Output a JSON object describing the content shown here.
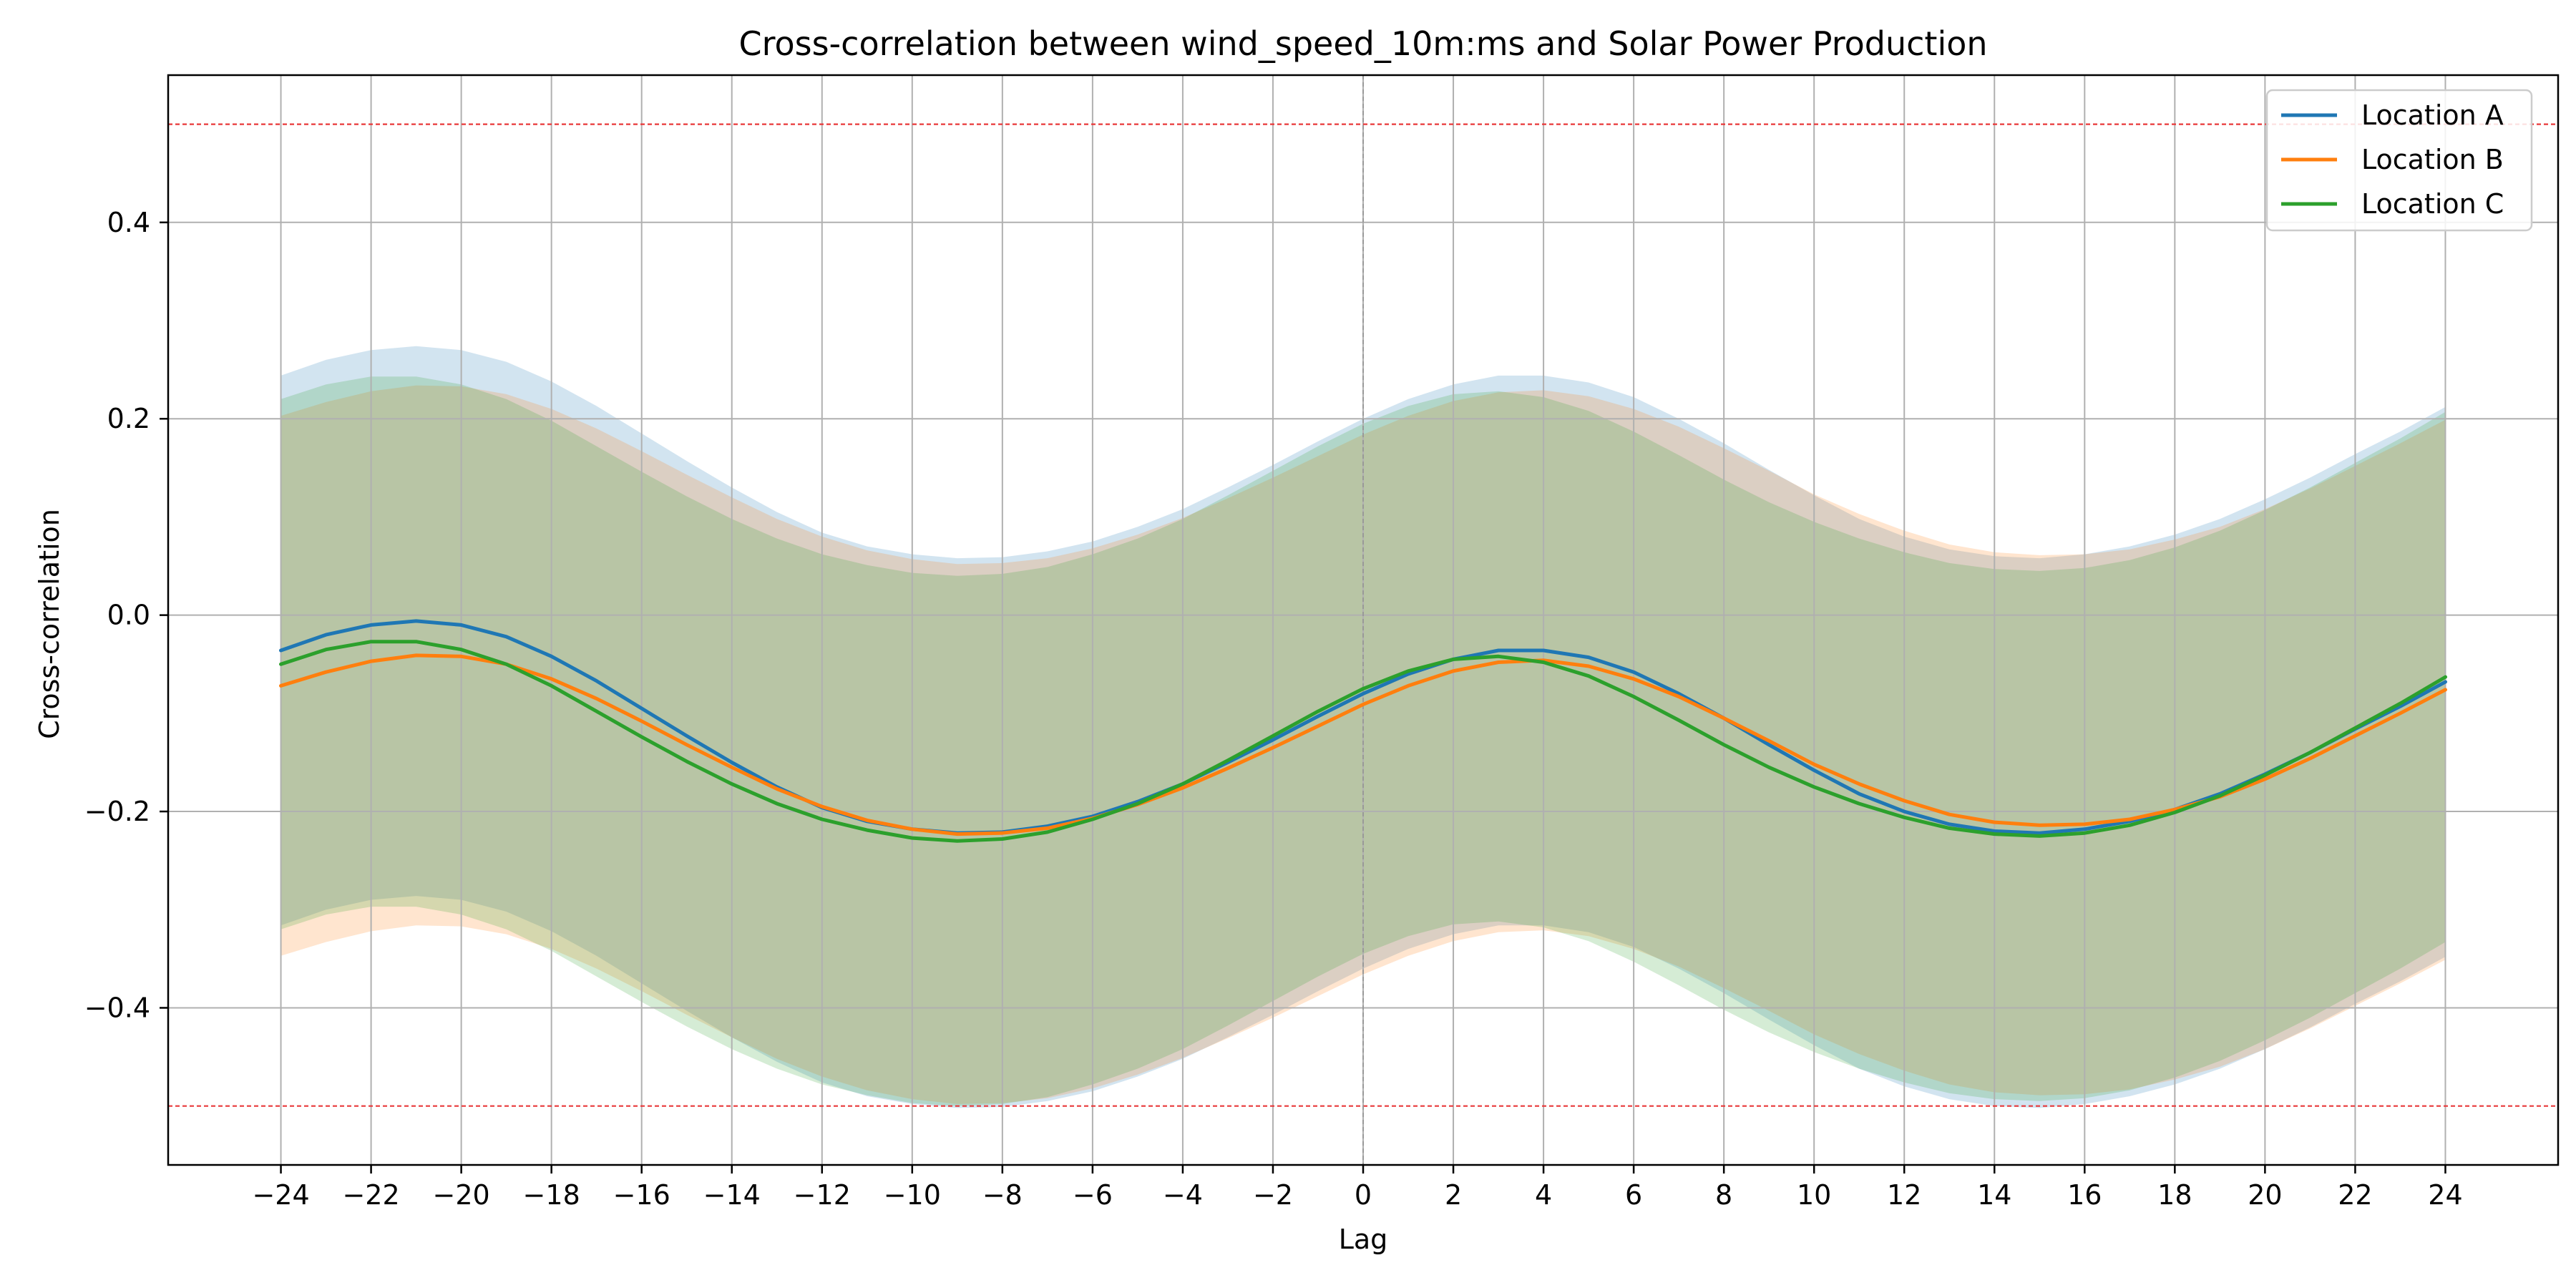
{
  "chart_data": {
    "type": "line",
    "title": "Cross-correlation between wind_speed_10m:ms and Solar Power Production",
    "xlabel": "Lag",
    "ylabel": "Cross-correlation",
    "xlim": [
      -26.5,
      26.5
    ],
    "ylim": [
      -0.56,
      0.55
    ],
    "xticks": [
      -24,
      -22,
      -20,
      -18,
      -16,
      -14,
      -12,
      -10,
      -8,
      -6,
      -4,
      -2,
      0,
      2,
      4,
      6,
      8,
      10,
      12,
      14,
      16,
      18,
      20,
      22,
      24
    ],
    "yticks": [
      -0.4,
      -0.2,
      0.0,
      0.2,
      0.4
    ],
    "ytick_labels": [
      "−0.4",
      "−0.2",
      "0.0",
      "0.2",
      "0.4"
    ],
    "grid": true,
    "legend_position": "top-right",
    "reference_lines": {
      "horizontal": [
        0.5,
        -0.5
      ],
      "horizontal_color": "#e8393a",
      "vertical": [
        0
      ],
      "vertical_color": "#999999"
    },
    "series": [
      {
        "name": "Location A",
        "color": "#1f77b4",
        "band_half_width": 0.28,
        "x": [
          -24,
          -23,
          -22,
          -21,
          -20,
          -19,
          -18,
          -17,
          -16,
          -15,
          -14,
          -13,
          -12,
          -11,
          -10,
          -9,
          -8,
          -7,
          -6,
          -5,
          -4,
          -3,
          -2,
          -1,
          0,
          1,
          2,
          3,
          4,
          5,
          6,
          7,
          8,
          9,
          10,
          11,
          12,
          13,
          14,
          15,
          16,
          17,
          18,
          19,
          20,
          21,
          22,
          23,
          24
        ],
        "y": [
          -0.036,
          -0.02,
          -0.01,
          -0.006,
          -0.01,
          -0.022,
          -0.042,
          -0.067,
          -0.095,
          -0.123,
          -0.15,
          -0.175,
          -0.196,
          -0.21,
          -0.218,
          -0.222,
          -0.221,
          -0.215,
          -0.205,
          -0.19,
          -0.172,
          -0.15,
          -0.127,
          -0.103,
          -0.08,
          -0.06,
          -0.045,
          -0.036,
          -0.036,
          -0.043,
          -0.058,
          -0.08,
          -0.105,
          -0.132,
          -0.158,
          -0.182,
          -0.2,
          -0.213,
          -0.22,
          -0.222,
          -0.218,
          -0.21,
          -0.198,
          -0.182,
          -0.162,
          -0.14,
          -0.116,
          -0.093,
          -0.068
        ]
      },
      {
        "name": "Location B",
        "color": "#ff7f0e",
        "band_half_width": 0.275,
        "x": [
          -24,
          -23,
          -22,
          -21,
          -20,
          -19,
          -18,
          -17,
          -16,
          -15,
          -14,
          -13,
          -12,
          -11,
          -10,
          -9,
          -8,
          -7,
          -6,
          -5,
          -4,
          -3,
          -2,
          -1,
          0,
          1,
          2,
          3,
          4,
          5,
          6,
          7,
          8,
          9,
          10,
          11,
          12,
          13,
          14,
          15,
          16,
          17,
          18,
          19,
          20,
          21,
          22,
          23,
          24
        ],
        "y": [
          -0.072,
          -0.058,
          -0.047,
          -0.041,
          -0.042,
          -0.05,
          -0.065,
          -0.085,
          -0.108,
          -0.132,
          -0.155,
          -0.177,
          -0.195,
          -0.209,
          -0.218,
          -0.223,
          -0.222,
          -0.217,
          -0.207,
          -0.193,
          -0.176,
          -0.156,
          -0.135,
          -0.113,
          -0.091,
          -0.072,
          -0.057,
          -0.048,
          -0.046,
          -0.052,
          -0.065,
          -0.083,
          -0.105,
          -0.128,
          -0.152,
          -0.172,
          -0.189,
          -0.203,
          -0.211,
          -0.214,
          -0.213,
          -0.208,
          -0.198,
          -0.185,
          -0.167,
          -0.146,
          -0.123,
          -0.1,
          -0.076
        ]
      },
      {
        "name": "Location C",
        "color": "#2ca02c",
        "band_half_width": 0.27,
        "x": [
          -24,
          -23,
          -22,
          -21,
          -20,
          -19,
          -18,
          -17,
          -16,
          -15,
          -14,
          -13,
          -12,
          -11,
          -10,
          -9,
          -8,
          -7,
          -6,
          -5,
          -4,
          -3,
          -2,
          -1,
          0,
          1,
          2,
          3,
          4,
          5,
          6,
          7,
          8,
          9,
          10,
          11,
          12,
          13,
          14,
          15,
          16,
          17,
          18,
          19,
          20,
          21,
          22,
          23,
          24
        ],
        "y": [
          -0.05,
          -0.035,
          -0.027,
          -0.027,
          -0.035,
          -0.05,
          -0.072,
          -0.098,
          -0.124,
          -0.149,
          -0.172,
          -0.192,
          -0.208,
          -0.219,
          -0.227,
          -0.23,
          -0.228,
          -0.221,
          -0.208,
          -0.192,
          -0.172,
          -0.148,
          -0.123,
          -0.098,
          -0.075,
          -0.057,
          -0.045,
          -0.042,
          -0.048,
          -0.062,
          -0.083,
          -0.107,
          -0.132,
          -0.155,
          -0.175,
          -0.192,
          -0.206,
          -0.217,
          -0.223,
          -0.225,
          -0.222,
          -0.214,
          -0.201,
          -0.184,
          -0.163,
          -0.14,
          -0.115,
          -0.09,
          -0.063
        ]
      }
    ]
  }
}
